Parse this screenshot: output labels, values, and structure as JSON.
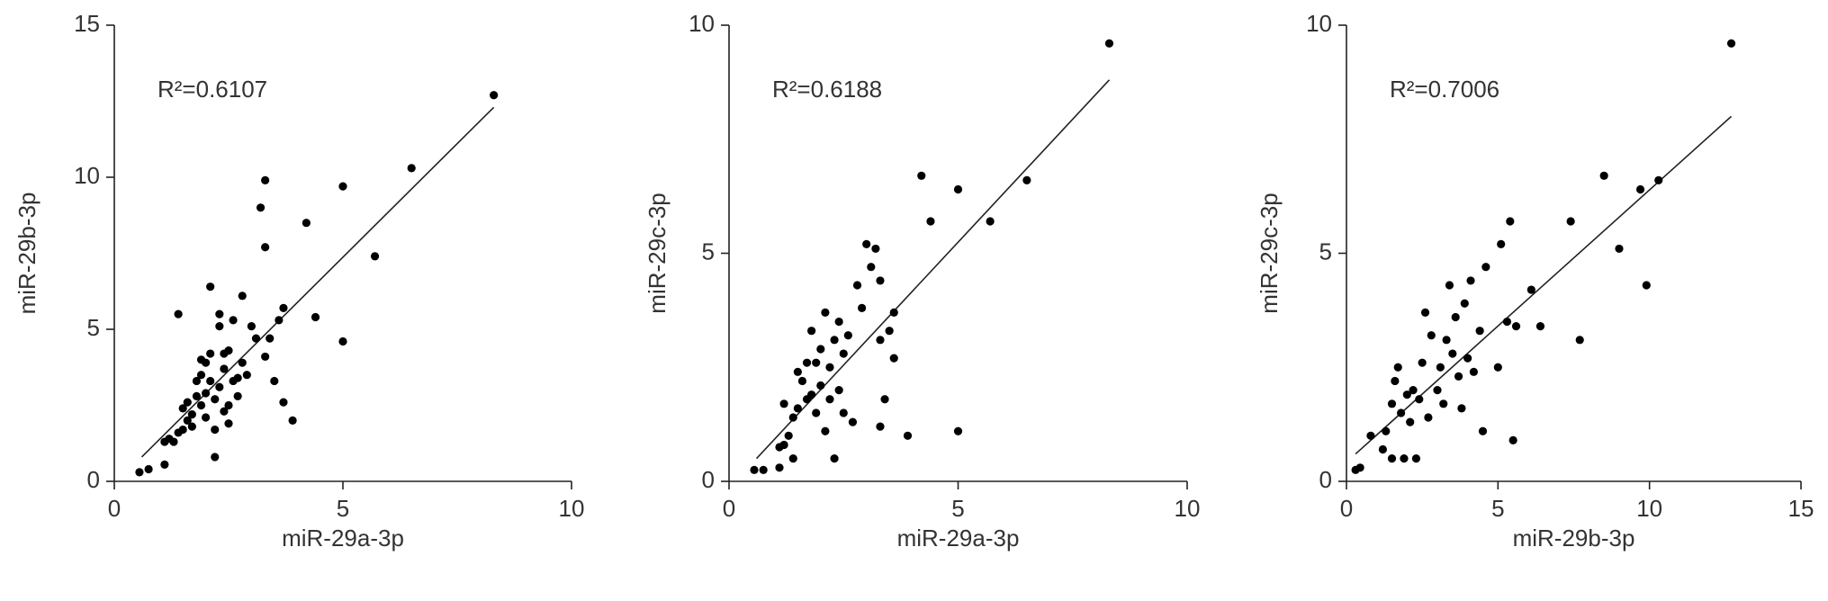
{
  "chart_data": [
    {
      "type": "scatter",
      "x_label": "miR-29a-3p",
      "y_label": "miR-29b-3p",
      "annotation": "R²=0.6107",
      "color": "#000000",
      "xlim": [
        0,
        10
      ],
      "ylim": [
        0,
        15
      ],
      "xticks": [
        0,
        5,
        10
      ],
      "yticks": [
        0,
        5,
        10,
        15
      ],
      "x": [
        0.55,
        0.75,
        1.1,
        1.1,
        1.2,
        1.3,
        1.4,
        1.4,
        1.5,
        1.5,
        1.6,
        1.6,
        1.7,
        1.7,
        1.8,
        1.8,
        1.9,
        1.9,
        1.9,
        2.0,
        2.0,
        2.0,
        2.1,
        2.1,
        2.1,
        2.2,
        2.2,
        2.2,
        2.3,
        2.3,
        2.3,
        2.4,
        2.4,
        2.4,
        2.5,
        2.5,
        2.5,
        2.6,
        2.6,
        2.7,
        2.7,
        2.8,
        2.8,
        2.9,
        3.0,
        3.1,
        3.2,
        3.3,
        3.3,
        3.3,
        3.4,
        3.5,
        3.6,
        3.7,
        3.7,
        3.9,
        4.2,
        4.4,
        5.0,
        5.0,
        5.7,
        6.5,
        8.3
      ],
      "y": [
        0.3,
        0.4,
        0.55,
        1.3,
        1.4,
        1.3,
        5.5,
        1.6,
        2.4,
        1.7,
        2.0,
        2.6,
        1.8,
        2.2,
        2.8,
        3.3,
        2.5,
        3.5,
        4.0,
        2.9,
        3.9,
        2.1,
        3.3,
        4.2,
        6.4,
        1.7,
        2.7,
        0.8,
        3.1,
        5.5,
        5.1,
        2.3,
        3.7,
        4.2,
        1.9,
        2.5,
        4.3,
        3.3,
        5.3,
        2.8,
        3.4,
        6.1,
        3.9,
        3.5,
        5.1,
        4.7,
        9.0,
        9.9,
        7.7,
        4.1,
        4.7,
        3.3,
        5.3,
        5.7,
        2.6,
        2.0,
        8.5,
        5.4,
        9.7,
        4.6,
        7.4,
        10.3,
        12.7
      ],
      "trendline": {
        "x": [
          0.6,
          8.3
        ],
        "y": [
          0.8,
          12.3
        ]
      }
    },
    {
      "type": "scatter",
      "x_label": "miR-29a-3p",
      "y_label": "miR-29c-3p",
      "annotation": "R²=0.6188",
      "color": "#000000",
      "xlim": [
        0,
        10
      ],
      "ylim": [
        0,
        10
      ],
      "xticks": [
        0,
        5,
        10
      ],
      "yticks": [
        0,
        5,
        10
      ],
      "x": [
        0.55,
        0.75,
        1.1,
        1.1,
        1.2,
        1.2,
        1.3,
        1.4,
        1.4,
        1.5,
        1.5,
        1.6,
        1.7,
        1.7,
        1.8,
        1.8,
        1.9,
        1.9,
        2.0,
        2.0,
        2.1,
        2.1,
        2.2,
        2.2,
        2.3,
        2.3,
        2.4,
        2.4,
        2.5,
        2.5,
        2.6,
        2.7,
        2.8,
        2.9,
        3.0,
        3.1,
        3.2,
        3.3,
        3.3,
        3.3,
        3.4,
        3.5,
        3.6,
        3.6,
        3.9,
        4.2,
        4.4,
        5.0,
        5.0,
        5.7,
        6.5,
        8.3
      ],
      "y": [
        0.25,
        0.25,
        0.3,
        0.75,
        0.8,
        1.7,
        1.0,
        0.5,
        1.4,
        1.6,
        2.4,
        2.2,
        1.8,
        2.6,
        1.9,
        3.3,
        1.5,
        2.6,
        2.1,
        2.9,
        1.1,
        3.7,
        1.8,
        2.5,
        0.5,
        3.1,
        2.0,
        3.5,
        1.5,
        2.8,
        3.2,
        1.3,
        4.3,
        3.8,
        5.2,
        4.7,
        5.1,
        4.4,
        3.1,
        1.2,
        1.8,
        3.3,
        3.7,
        2.7,
        1.0,
        6.7,
        5.7,
        6.4,
        1.1,
        5.7,
        6.6,
        9.6
      ],
      "trendline": {
        "x": [
          0.6,
          8.3
        ],
        "y": [
          0.5,
          8.8
        ]
      }
    },
    {
      "type": "scatter",
      "x_label": "miR-29b-3p",
      "y_label": "miR-29c-3p",
      "annotation": "R²=0.7006",
      "color": "#000000",
      "xlim": [
        0,
        15
      ],
      "ylim": [
        0,
        10
      ],
      "xticks": [
        0,
        5,
        10,
        15
      ],
      "yticks": [
        0,
        5,
        10
      ],
      "x": [
        0.3,
        0.45,
        0.8,
        1.2,
        1.3,
        1.5,
        1.5,
        1.6,
        1.7,
        1.8,
        1.9,
        2.0,
        2.1,
        2.2,
        2.3,
        2.4,
        2.5,
        2.6,
        2.7,
        2.8,
        3.0,
        3.1,
        3.2,
        3.3,
        3.4,
        3.5,
        3.6,
        3.7,
        3.8,
        3.9,
        4.0,
        4.1,
        4.2,
        4.4,
        4.5,
        4.6,
        5.0,
        5.1,
        5.3,
        5.4,
        5.5,
        5.6,
        6.1,
        6.4,
        7.4,
        7.7,
        8.5,
        9.0,
        9.7,
        9.9,
        10.3,
        12.7
      ],
      "y": [
        0.25,
        0.3,
        1.0,
        0.7,
        1.1,
        1.7,
        0.5,
        2.2,
        2.5,
        1.5,
        0.5,
        1.9,
        1.3,
        2.0,
        0.5,
        1.8,
        2.6,
        3.7,
        1.4,
        3.2,
        2.0,
        2.5,
        1.7,
        3.1,
        4.3,
        2.8,
        3.6,
        2.3,
        1.6,
        3.9,
        2.7,
        4.4,
        2.4,
        3.3,
        1.1,
        4.7,
        2.5,
        5.2,
        3.5,
        5.7,
        0.9,
        3.4,
        4.2,
        3.4,
        5.7,
        3.1,
        6.7,
        5.1,
        6.4,
        4.3,
        6.6,
        9.6
      ],
      "trendline": {
        "x": [
          0.3,
          12.7
        ],
        "y": [
          0.6,
          8.0
        ]
      }
    }
  ]
}
